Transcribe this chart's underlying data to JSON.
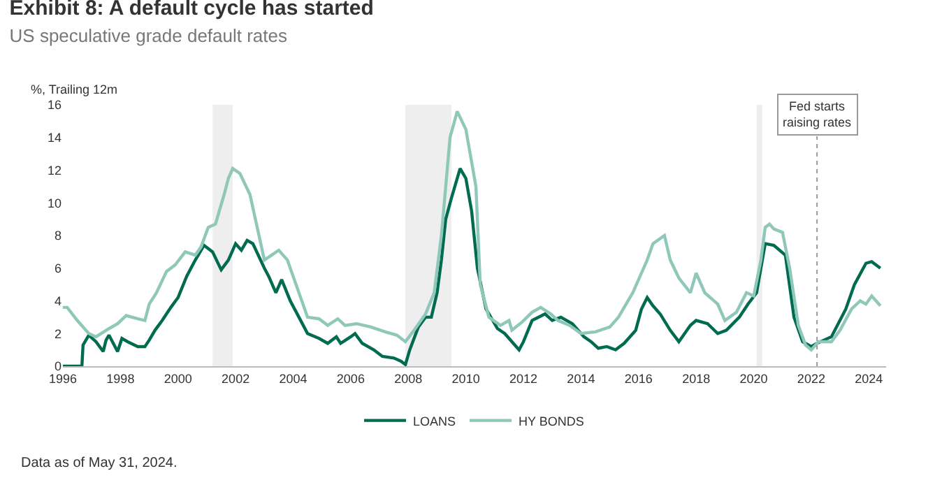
{
  "chart_data": {
    "type": "line",
    "title": "Exhibit 8: A default cycle has started",
    "subtitle": "US speculative grade default rates",
    "ylabel": "%, Trailing 12m",
    "xlim": [
      1996,
      2024.6
    ],
    "xticks": [
      1996,
      1998,
      2000,
      2002,
      2004,
      2006,
      2008,
      2010,
      2012,
      2014,
      2016,
      2018,
      2020,
      2022,
      2024
    ],
    "ylim": [
      0,
      16
    ],
    "yticks": [
      0,
      2,
      4,
      6,
      8,
      10,
      12,
      14,
      16
    ],
    "grid": false,
    "legend": "bottom",
    "line_style": "solid",
    "marker": "none",
    "series": [
      {
        "name": "LOANS",
        "color": "#006b4f",
        "x": [
          1996.0,
          1996.66,
          1996.7,
          1996.9,
          1997.15,
          1997.4,
          1997.5,
          1997.6,
          1997.75,
          1997.9,
          1998.05,
          1998.25,
          1998.6,
          1998.85,
          1999.0,
          1999.2,
          1999.45,
          1999.75,
          2000.0,
          2000.3,
          2000.6,
          2000.9,
          2001.2,
          2001.5,
          2001.75,
          2002.0,
          2002.2,
          2002.4,
          2002.6,
          2003.0,
          2003.15,
          2003.4,
          2003.6,
          2003.9,
          2004.2,
          2004.5,
          2004.9,
          2005.2,
          2005.5,
          2005.65,
          2006.0,
          2006.15,
          2006.4,
          2006.8,
          2007.1,
          2007.5,
          2007.75,
          2007.9,
          2008.05,
          2008.2,
          2008.35,
          2008.6,
          2008.8,
          2009.0,
          2009.15,
          2009.3,
          2009.5,
          2009.8,
          2010.0,
          2010.2,
          2010.4,
          2010.7,
          2011.1,
          2011.35,
          2011.6,
          2011.85,
          2012.0,
          2012.3,
          2012.75,
          2013.0,
          2013.3,
          2013.7,
          2014.1,
          2014.35,
          2014.6,
          2014.9,
          2015.2,
          2015.5,
          2015.9,
          2016.1,
          2016.3,
          2016.5,
          2016.75,
          2017.1,
          2017.4,
          2017.8,
          2018.0,
          2018.4,
          2018.75,
          2019.05,
          2019.5,
          2019.8,
          2020.1,
          2020.4,
          2020.7,
          2021.1,
          2021.4,
          2021.7,
          2022.0,
          2022.2,
          2022.7,
          2023.2,
          2023.5,
          2023.9,
          2024.1,
          2024.4
        ],
        "values": [
          0,
          0,
          1.3,
          1.9,
          1.5,
          0.9,
          1.6,
          1.9,
          1.4,
          0.9,
          1.7,
          1.5,
          1.2,
          1.2,
          1.6,
          2.2,
          2.8,
          3.6,
          4.2,
          5.5,
          6.5,
          7.4,
          7.0,
          5.9,
          6.5,
          7.5,
          7.1,
          7.7,
          7.5,
          6.0,
          5.5,
          4.5,
          5.3,
          4.0,
          3.0,
          2.0,
          1.7,
          1.4,
          1.8,
          1.4,
          1.8,
          2.0,
          1.4,
          1.0,
          0.6,
          0.5,
          0.3,
          0.1,
          1.0,
          1.7,
          2.4,
          3.0,
          3.0,
          4.5,
          6.5,
          9.0,
          10.3,
          12.1,
          11.5,
          9.5,
          6.0,
          3.5,
          2.3,
          2.0,
          1.5,
          1.0,
          1.5,
          2.8,
          3.2,
          2.8,
          3.0,
          2.6,
          1.8,
          1.5,
          1.1,
          1.2,
          1.0,
          1.4,
          2.2,
          3.5,
          4.2,
          3.7,
          3.2,
          2.2,
          1.5,
          2.5,
          2.8,
          2.6,
          2.0,
          2.2,
          3.0,
          3.8,
          4.5,
          7.5,
          7.4,
          6.8,
          3.0,
          1.5,
          1.2,
          1.4,
          1.8,
          3.5,
          5.0,
          6.3,
          6.4,
          6.0
        ]
      },
      {
        "name": "HY BONDS",
        "color": "#8fc7b8",
        "x": [
          1996.0,
          1996.15,
          1996.5,
          1996.9,
          1997.15,
          1997.6,
          1997.9,
          1998.2,
          1998.6,
          1998.85,
          1999.0,
          1999.25,
          1999.6,
          1999.9,
          2000.25,
          2000.6,
          2000.8,
          2001.05,
          2001.3,
          2001.6,
          2001.75,
          2001.9,
          2002.15,
          2002.5,
          2002.75,
          2003.0,
          2003.25,
          2003.5,
          2003.8,
          2004.1,
          2004.5,
          2004.9,
          2005.2,
          2005.55,
          2005.8,
          2006.2,
          2006.7,
          2007.2,
          2007.6,
          2007.9,
          2008.2,
          2008.6,
          2008.9,
          2009.15,
          2009.3,
          2009.45,
          2009.7,
          2010.0,
          2010.35,
          2010.5,
          2010.8,
          2011.2,
          2011.5,
          2011.6,
          2011.95,
          2012.3,
          2012.6,
          2012.95,
          2013.2,
          2013.6,
          2014.0,
          2014.5,
          2015.0,
          2015.3,
          2015.8,
          2016.3,
          2016.5,
          2016.9,
          2017.1,
          2017.4,
          2017.8,
          2018.0,
          2018.3,
          2018.75,
          2019.0,
          2019.4,
          2019.75,
          2020.0,
          2020.25,
          2020.4,
          2020.55,
          2020.7,
          2021.0,
          2021.25,
          2021.55,
          2021.8,
          2022.0,
          2022.25,
          2022.7,
          2023.0,
          2023.4,
          2023.7,
          2023.9,
          2024.1,
          2024.4
        ],
        "values": [
          3.6,
          3.6,
          2.8,
          2.0,
          1.8,
          2.3,
          2.6,
          3.1,
          2.9,
          2.8,
          3.8,
          4.5,
          5.8,
          6.2,
          7.0,
          6.8,
          7.3,
          8.5,
          8.7,
          10.5,
          11.5,
          12.1,
          11.8,
          10.5,
          8.5,
          6.5,
          6.8,
          7.1,
          6.5,
          5.0,
          3.0,
          2.9,
          2.5,
          2.9,
          2.5,
          2.6,
          2.4,
          2.1,
          1.9,
          1.5,
          2.2,
          3.2,
          4.5,
          8.0,
          11.0,
          14.0,
          15.6,
          14.5,
          11.0,
          5.0,
          3.0,
          2.5,
          2.8,
          2.2,
          2.7,
          3.3,
          3.6,
          3.2,
          2.8,
          2.5,
          2.0,
          2.1,
          2.4,
          3.0,
          4.5,
          6.5,
          7.5,
          8.0,
          6.5,
          5.4,
          4.5,
          5.7,
          4.5,
          3.8,
          2.8,
          3.3,
          4.5,
          4.3,
          6.5,
          8.5,
          8.7,
          8.4,
          8.2,
          6.0,
          2.5,
          1.3,
          1.0,
          1.5,
          1.5,
          2.2,
          3.5,
          4.0,
          3.8,
          4.3,
          3.7
        ]
      }
    ],
    "bands": [
      {
        "axis": "x",
        "from": 2001.2,
        "to": 2001.9,
        "color": "#eeeeee"
      },
      {
        "axis": "x",
        "from": 2007.9,
        "to": 2009.5,
        "color": "#eeeeee"
      },
      {
        "axis": "x",
        "from": 2020.1,
        "to": 2020.3,
        "color": "#eeeeee"
      }
    ],
    "ref_lines": [
      {
        "axis": "x",
        "value": 2022.2,
        "label": "Fed starts\nraising rates",
        "color": "#999999",
        "line_style": "dotted"
      }
    ],
    "annotations": [
      "Data as of May 31, 2024."
    ]
  }
}
